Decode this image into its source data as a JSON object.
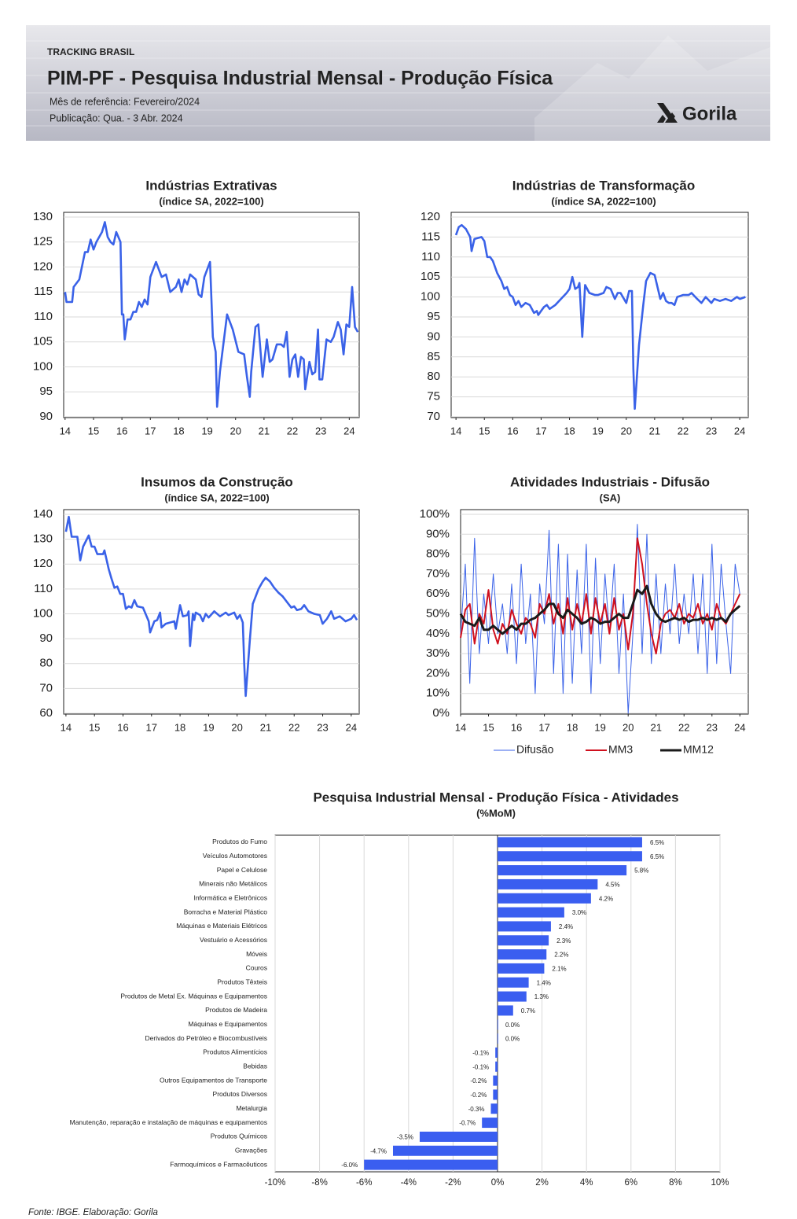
{
  "header": {
    "section": "TRACKING BRASIL",
    "title": "PIM-PF - Pesquisa Industrial Mensal - Produção Física",
    "reference": "Mês de referência: Fevereiro/2024",
    "publication": "Publicação: Qua. - 3 Abr. 2024",
    "logo": "Gorila"
  },
  "chart_data": [
    {
      "type": "line",
      "title": "Indústrias Extrativas",
      "subtitle": "(índice SA, 2022=100)",
      "x": [
        14,
        14.05,
        14.25,
        14.3,
        14.5,
        14.7,
        14.8,
        14.9,
        15,
        15.1,
        15.3,
        15.4,
        15.5,
        15.6,
        15.7,
        15.8,
        15.95,
        16,
        16.05,
        16.1,
        16.2,
        16.3,
        16.4,
        16.5,
        16.6,
        16.7,
        16.8,
        16.9,
        17,
        17.2,
        17.4,
        17.55,
        17.7,
        17.9,
        18,
        18.1,
        18.2,
        18.3,
        18.4,
        18.6,
        18.7,
        18.8,
        18.9,
        19.1,
        19.2,
        19.3,
        19.35,
        19.45,
        19.7,
        19.9,
        20.1,
        20.3,
        20.4,
        20.5,
        20.55,
        20.7,
        20.8,
        20.95,
        21.1,
        21.2,
        21.3,
        21.45,
        21.6,
        21.7,
        21.8,
        21.9,
        22,
        22.1,
        22.2,
        22.3,
        22.4,
        22.45,
        22.6,
        22.7,
        22.8,
        22.9,
        22.95,
        23.05,
        23.2,
        23.35,
        23.45,
        23.6,
        23.7,
        23.8,
        23.9,
        24,
        24.1,
        24.2,
        24.3
      ],
      "series": [
        {
          "color": "#3a62e8",
          "values": [
            115,
            113,
            113,
            116,
            117.5,
            123,
            123,
            125.5,
            123.5,
            125,
            127,
            129,
            126,
            125,
            124.5,
            127,
            125,
            110.5,
            110.5,
            105.5,
            109.5,
            109.5,
            111,
            111,
            113,
            112,
            113.5,
            112.5,
            118,
            121,
            118,
            118.5,
            115,
            116,
            117.5,
            115,
            117.5,
            116.5,
            118.5,
            117.5,
            114.5,
            114,
            118,
            121,
            106,
            103,
            92,
            99,
            110.5,
            107.5,
            103,
            102.5,
            98,
            94,
            99,
            108,
            108.5,
            98,
            105.5,
            101,
            101.5,
            104.5,
            104.5,
            104,
            107,
            98,
            101.5,
            102.5,
            98,
            102,
            101.5,
            95.5,
            101,
            98.5,
            99,
            107.5,
            97.5,
            97.5,
            105.5,
            105,
            106,
            109,
            107.5,
            102.5,
            108.5,
            108,
            116,
            108,
            107
          ]
        }
      ],
      "xlim": [
        13.95,
        24.35
      ],
      "xticks": [
        14,
        15,
        16,
        17,
        18,
        19,
        20,
        21,
        22,
        23,
        24
      ],
      "ylim": [
        90,
        130
      ],
      "yticks": [
        90,
        95,
        100,
        105,
        110,
        115,
        120,
        125,
        130
      ],
      "grid": true
    },
    {
      "type": "line",
      "title": "Indústrias de Transformação",
      "subtitle": "(índice SA, 2022=100)",
      "x": [
        14,
        14.1,
        14.2,
        14.35,
        14.5,
        14.55,
        14.65,
        14.9,
        15,
        15.1,
        15.2,
        15.3,
        15.45,
        15.6,
        15.7,
        15.8,
        15.9,
        16,
        16.1,
        16.2,
        16.3,
        16.45,
        16.6,
        16.75,
        16.85,
        16.9,
        17,
        17.1,
        17.2,
        17.3,
        17.5,
        17.7,
        17.9,
        18,
        18.1,
        18.2,
        18.3,
        18.35,
        18.45,
        18.55,
        18.7,
        18.9,
        19,
        19.2,
        19.3,
        19.45,
        19.6,
        19.7,
        19.8,
        20,
        20.1,
        20.2,
        20.25,
        20.3,
        20.45,
        20.6,
        20.7,
        20.85,
        21,
        21.2,
        21.3,
        21.4,
        21.5,
        21.6,
        21.7,
        21.8,
        22,
        22.2,
        22.3,
        22.5,
        22.65,
        22.8,
        23,
        23.1,
        23.3,
        23.5,
        23.7,
        23.9,
        24,
        24.2
      ],
      "series": [
        {
          "color": "#3a62e8",
          "values": [
            115.5,
            117.5,
            118,
            117,
            115,
            111.5,
            114.5,
            115,
            114,
            110,
            110,
            109,
            106,
            104,
            102,
            102.5,
            100.5,
            100,
            98,
            99,
            97.5,
            98.5,
            98,
            96,
            96.5,
            95.5,
            96.5,
            97.5,
            98,
            97,
            98,
            99.5,
            101,
            102,
            105,
            102,
            102.5,
            103.5,
            90,
            103,
            101,
            100.5,
            100.5,
            101,
            102.5,
            102,
            99.5,
            101,
            101,
            98.5,
            101.5,
            101.5,
            82,
            72,
            88,
            98,
            104,
            106,
            105.5,
            99.5,
            101,
            99,
            98.5,
            98.5,
            98,
            100,
            100.5,
            100.5,
            101,
            99.5,
            98.5,
            100,
            98.5,
            99.5,
            99,
            99.5,
            99,
            100,
            99.5,
            100
          ]
        }
      ],
      "xlim": [
        13.83,
        24.3
      ],
      "xticks": [
        14,
        15,
        16,
        17,
        18,
        19,
        20,
        21,
        22,
        23,
        24
      ],
      "ylim": [
        70,
        120
      ],
      "yticks": [
        70,
        75,
        80,
        85,
        90,
        95,
        100,
        105,
        110,
        115,
        120
      ],
      "grid": true
    },
    {
      "type": "line",
      "title": "Insumos da Construção",
      "subtitle": "(índice SA, 2022=100)",
      "x": [
        14,
        14.1,
        14.2,
        14.4,
        14.5,
        14.6,
        14.8,
        14.9,
        15,
        15.1,
        15.3,
        15.35,
        15.5,
        15.6,
        15.7,
        15.8,
        15.9,
        16,
        16.1,
        16.2,
        16.3,
        16.4,
        16.5,
        16.7,
        16.9,
        16.95,
        17.1,
        17.2,
        17.3,
        17.35,
        17.5,
        17.8,
        17.85,
        18,
        18.1,
        18.25,
        18.3,
        18.35,
        18.45,
        18.5,
        18.55,
        18.7,
        18.8,
        18.9,
        19,
        19.2,
        19.4,
        19.6,
        19.7,
        19.9,
        20,
        20.1,
        20.2,
        20.25,
        20.3,
        20.45,
        20.55,
        20.65,
        20.75,
        20.9,
        21,
        21.15,
        21.3,
        21.45,
        21.6,
        21.8,
        21.9,
        22,
        22.1,
        22.25,
        22.35,
        22.5,
        22.7,
        22.9,
        23,
        23.15,
        23.3,
        23.4,
        23.6,
        23.8,
        24,
        24.1,
        24.2
      ],
      "series": [
        {
          "color": "#3a62e8",
          "values": [
            133,
            139,
            131,
            131,
            121.5,
            127,
            131.5,
            127,
            127,
            124,
            124,
            125.5,
            118,
            114,
            110.5,
            111,
            108,
            108,
            102,
            103,
            102.5,
            105.5,
            103,
            102.5,
            97,
            92.5,
            97,
            97.5,
            100.5,
            94.5,
            96,
            97,
            94,
            103.5,
            99,
            99.5,
            101,
            87,
            100,
            97.5,
            100.5,
            99.5,
            97,
            100,
            98.5,
            101,
            99,
            100.5,
            99.5,
            100.5,
            98,
            99.5,
            96.5,
            80,
            67,
            90,
            104,
            107,
            110,
            113,
            114.5,
            113,
            110.5,
            108.5,
            107,
            104,
            102.5,
            103,
            101.5,
            102,
            103.5,
            101,
            100,
            99.5,
            96,
            98,
            101,
            98,
            99,
            97,
            98,
            99.5,
            97.5
          ]
        }
      ],
      "xlim": [
        13.92,
        24.28
      ],
      "xticks": [
        14,
        15,
        16,
        17,
        18,
        19,
        20,
        21,
        22,
        23,
        24
      ],
      "ylim": [
        60,
        140
      ],
      "yticks": [
        60,
        70,
        80,
        90,
        100,
        110,
        120,
        130,
        140
      ],
      "grid": true
    },
    {
      "type": "line",
      "title": "Atividades Industriais - Difusão",
      "subtitle": "(SA)",
      "x": [
        14,
        14.17,
        14.33,
        14.5,
        14.67,
        14.83,
        15,
        15.17,
        15.33,
        15.5,
        15.67,
        15.83,
        16,
        16.17,
        16.33,
        16.5,
        16.67,
        16.83,
        17,
        17.17,
        17.33,
        17.5,
        17.67,
        17.83,
        18,
        18.17,
        18.33,
        18.5,
        18.67,
        18.83,
        19,
        19.17,
        19.33,
        19.5,
        19.67,
        19.83,
        20,
        20.17,
        20.33,
        20.5,
        20.67,
        20.83,
        21,
        21.17,
        21.33,
        21.5,
        21.67,
        21.83,
        22,
        22.17,
        22.33,
        22.5,
        22.67,
        22.83,
        23,
        23.17,
        23.33,
        23.5,
        23.67,
        23.83,
        24
      ],
      "series": [
        {
          "name": "Difusão",
          "color": "#3a62e8",
          "values": [
            40,
            75,
            15,
            88,
            30,
            60,
            35,
            70,
            40,
            55,
            30,
            65,
            25,
            75,
            35,
            60,
            10,
            65,
            45,
            92,
            20,
            85,
            10,
            80,
            15,
            72,
            30,
            85,
            10,
            78,
            25,
            70,
            40,
            75,
            20,
            60,
            0,
            40,
            95,
            30,
            90,
            25,
            70,
            30,
            65,
            40,
            75,
            35,
            60,
            40,
            70,
            30,
            70,
            20,
            85,
            25,
            75,
            45,
            20,
            75,
            60
          ]
        },
        {
          "name": "MM3",
          "color": "#d0101e",
          "values": [
            38,
            52,
            55,
            35,
            50,
            45,
            62,
            42,
            35,
            45,
            40,
            52,
            45,
            40,
            48,
            45,
            38,
            55,
            50,
            60,
            45,
            55,
            40,
            58,
            42,
            55,
            45,
            60,
            40,
            58,
            45,
            55,
            40,
            58,
            42,
            50,
            32,
            50,
            88,
            75,
            55,
            40,
            30,
            45,
            50,
            52,
            48,
            55,
            45,
            50,
            48,
            55,
            45,
            50,
            42,
            55,
            48,
            45,
            50,
            55,
            60
          ]
        },
        {
          "name": "MM12",
          "color": "#1a1a1a",
          "values": [
            50,
            46,
            45,
            44,
            48,
            42,
            42,
            44,
            42,
            40,
            42,
            44,
            42,
            45,
            45,
            47,
            48,
            50,
            52,
            55,
            55,
            50,
            48,
            52,
            50,
            48,
            45,
            46,
            48,
            47,
            45,
            46,
            46,
            48,
            50,
            48,
            48,
            55,
            62,
            60,
            64,
            55,
            50,
            47,
            46,
            47,
            48,
            47,
            48,
            46,
            47,
            47,
            48,
            47,
            48,
            47,
            48,
            46,
            50,
            52,
            54
          ]
        }
      ],
      "xlim": [
        14,
        24.3
      ],
      "xticks": [
        14,
        15,
        16,
        17,
        18,
        19,
        20,
        21,
        22,
        23,
        24
      ],
      "ylim": [
        0,
        100
      ],
      "yticks": [
        {
          "value": 0,
          "label": "0%"
        },
        {
          "value": 10,
          "label": "10%"
        },
        {
          "value": 20,
          "label": "20%"
        },
        {
          "value": 30,
          "label": "30%"
        },
        {
          "value": 40,
          "label": "40%"
        },
        {
          "value": 50,
          "label": "50%"
        },
        {
          "value": 60,
          "label": "60%"
        },
        {
          "value": 70,
          "label": "70%"
        },
        {
          "value": 80,
          "label": "80%"
        },
        {
          "value": 90,
          "label": "90%"
        },
        {
          "value": 100,
          "label": "100%"
        }
      ],
      "grid": true,
      "legend": "bottom"
    },
    {
      "type": "bar",
      "orientation": "horizontal",
      "title": "Pesquisa Industrial Mensal - Produção Física - Atividades",
      "subtitle": "(%MoM)",
      "categories": [
        "Produtos do Fumo",
        "Veículos Automotores",
        "Papel e Celulose",
        "Minerais não Metálicos",
        "Informática e Eletrônicos",
        "Borracha e Material Plástico",
        "Máquinas e Materiais Elétricos",
        "Vestuário e Acessórios",
        "Móveis",
        "Couros",
        "Produtos Têxteis",
        "Produtos de Metal Ex. Máquinas e Equipamentos",
        "Produtos de Madeira",
        "Máquinas e Equipamentos",
        "Derivados do Petróleo e Biocombustíveis",
        "Produtos Alimentícios",
        "Bebidas",
        "Outros Equipamentos de Transporte",
        "Produtos Diversos",
        "Metalurgia",
        "Manutenção, reparação e instalação de máquinas e equipamentos",
        "Produtos Químicos",
        "Gravações",
        "Farmoquímicos e Farmacêuticos"
      ],
      "values": [
        6.5,
        6.5,
        5.8,
        4.5,
        4.2,
        3.0,
        2.4,
        2.3,
        2.2,
        2.1,
        1.4,
        1.3,
        0.7,
        0.0,
        0.0,
        -0.1,
        -0.1,
        -0.2,
        -0.2,
        -0.3,
        -0.7,
        -3.5,
        -4.7,
        -6.0
      ],
      "value_labels": [
        "6.5%",
        "6.5%",
        "5.8%",
        "4.5%",
        "4.2%",
        "3.0%",
        "2.4%",
        "2.3%",
        "2.2%",
        "2.1%",
        "1.4%",
        "1.3%",
        "0.7%",
        "0.0%",
        "0.0%",
        "-0.1%",
        "-0.1%",
        "-0.2%",
        "-0.2%",
        "-0.3%",
        "-0.7%",
        "-3.5%",
        "-4.7%",
        "-6.0%"
      ],
      "color": "#3a5ef0",
      "xlim": [
        -10,
        10
      ],
      "xticks": [
        {
          "value": -10,
          "label": "-10%"
        },
        {
          "value": -8,
          "label": "-8%"
        },
        {
          "value": -6,
          "label": "-6%"
        },
        {
          "value": -4,
          "label": "-4%"
        },
        {
          "value": -2,
          "label": "-2%"
        },
        {
          "value": 0,
          "label": "0%"
        },
        {
          "value": 2,
          "label": "2%"
        },
        {
          "value": 4,
          "label": "4%"
        },
        {
          "value": 6,
          "label": "6%"
        },
        {
          "value": 8,
          "label": "8%"
        },
        {
          "value": 10,
          "label": "10%"
        }
      ],
      "grid": true
    }
  ],
  "footer": {
    "source": "Fonte: IBGE. Elaboração: Gorila"
  }
}
